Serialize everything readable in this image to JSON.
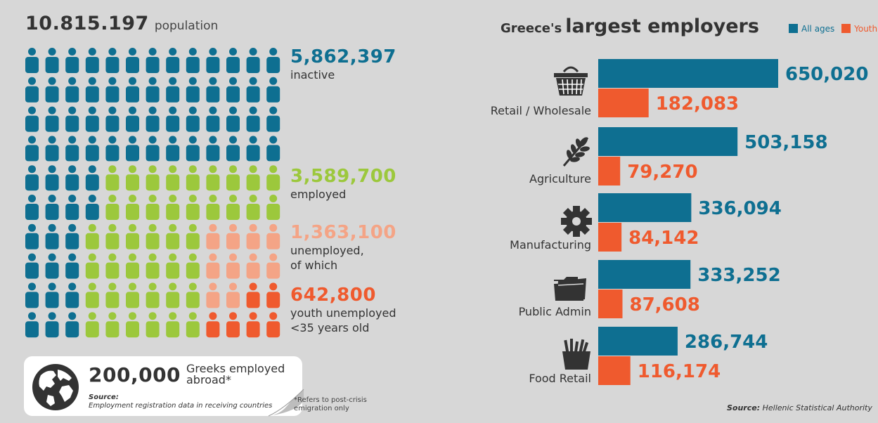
{
  "population": {
    "value": "10.815.197",
    "label": "population"
  },
  "stats": [
    {
      "value": "5,862,397",
      "label": [
        "inactive"
      ],
      "color": "#0e6f91"
    },
    {
      "value": "3,589,700",
      "label": [
        "employed"
      ],
      "color": "#9cc83c"
    },
    {
      "value": "1,363,100",
      "label": [
        "unemployed,",
        "of which"
      ],
      "color": "#f4a486"
    },
    {
      "value": "642,800",
      "label": [
        "youth unemployed",
        "<35 years old"
      ],
      "color": "#ef5a2e"
    }
  ],
  "pictograph_rows": [
    "IIIIIIIIIIIII",
    "IIIIIIIIIIIII",
    "IIIIIIIIIIIII",
    "IIIIIIIIIIIII",
    "IIIIEEEEEEEEE",
    "IIIIEEEEEEEEE",
    "IIIEEEEEEUUUU",
    "IIIEEEEEEUUUU",
    "IIIEEEEEEUUYY",
    "IIIEEEEEEYYYY"
  ],
  "abroad": {
    "value": "200,000",
    "text": "Greeks employed abroad*",
    "source_label": "Source:",
    "source_text": "Employment registration data in receiving countries",
    "footnote": "*Refers to post-crisis emigration only"
  },
  "chart_title": {
    "part1": "Greece's",
    "part2": "largest employers"
  },
  "legend": [
    {
      "label": "All ages",
      "color": "#0e6f91"
    },
    {
      "label": "Youth",
      "color": "#ef5a2e"
    }
  ],
  "chart_source": {
    "label": "Source:",
    "text": "Hellenic Statistical Authority"
  },
  "icons": [
    "basket-icon",
    "wheat-icon",
    "gear-icon",
    "folder-icon",
    "fries-icon"
  ],
  "chart_data": {
    "type": "bar",
    "orientation": "horizontal",
    "categories": [
      "Retail / Wholesale",
      "Agriculture",
      "Manufacturing",
      "Public Admin",
      "Food Retail"
    ],
    "series": [
      {
        "name": "All ages",
        "values": [
          650020,
          503158,
          336094,
          333252,
          286744
        ],
        "labels": [
          "650,020",
          "503,158",
          "336,094",
          "333,252",
          "286,744"
        ],
        "color": "#0e6f91"
      },
      {
        "name": "Youth",
        "values": [
          182083,
          79270,
          84142,
          87608,
          116174
        ],
        "labels": [
          "182,083",
          "79,270",
          "84,142",
          "87,608",
          "116,174"
        ],
        "color": "#ef5a2e"
      }
    ],
    "xlim": [
      0,
      650020
    ],
    "grid": false,
    "legend_position": "top-right"
  }
}
